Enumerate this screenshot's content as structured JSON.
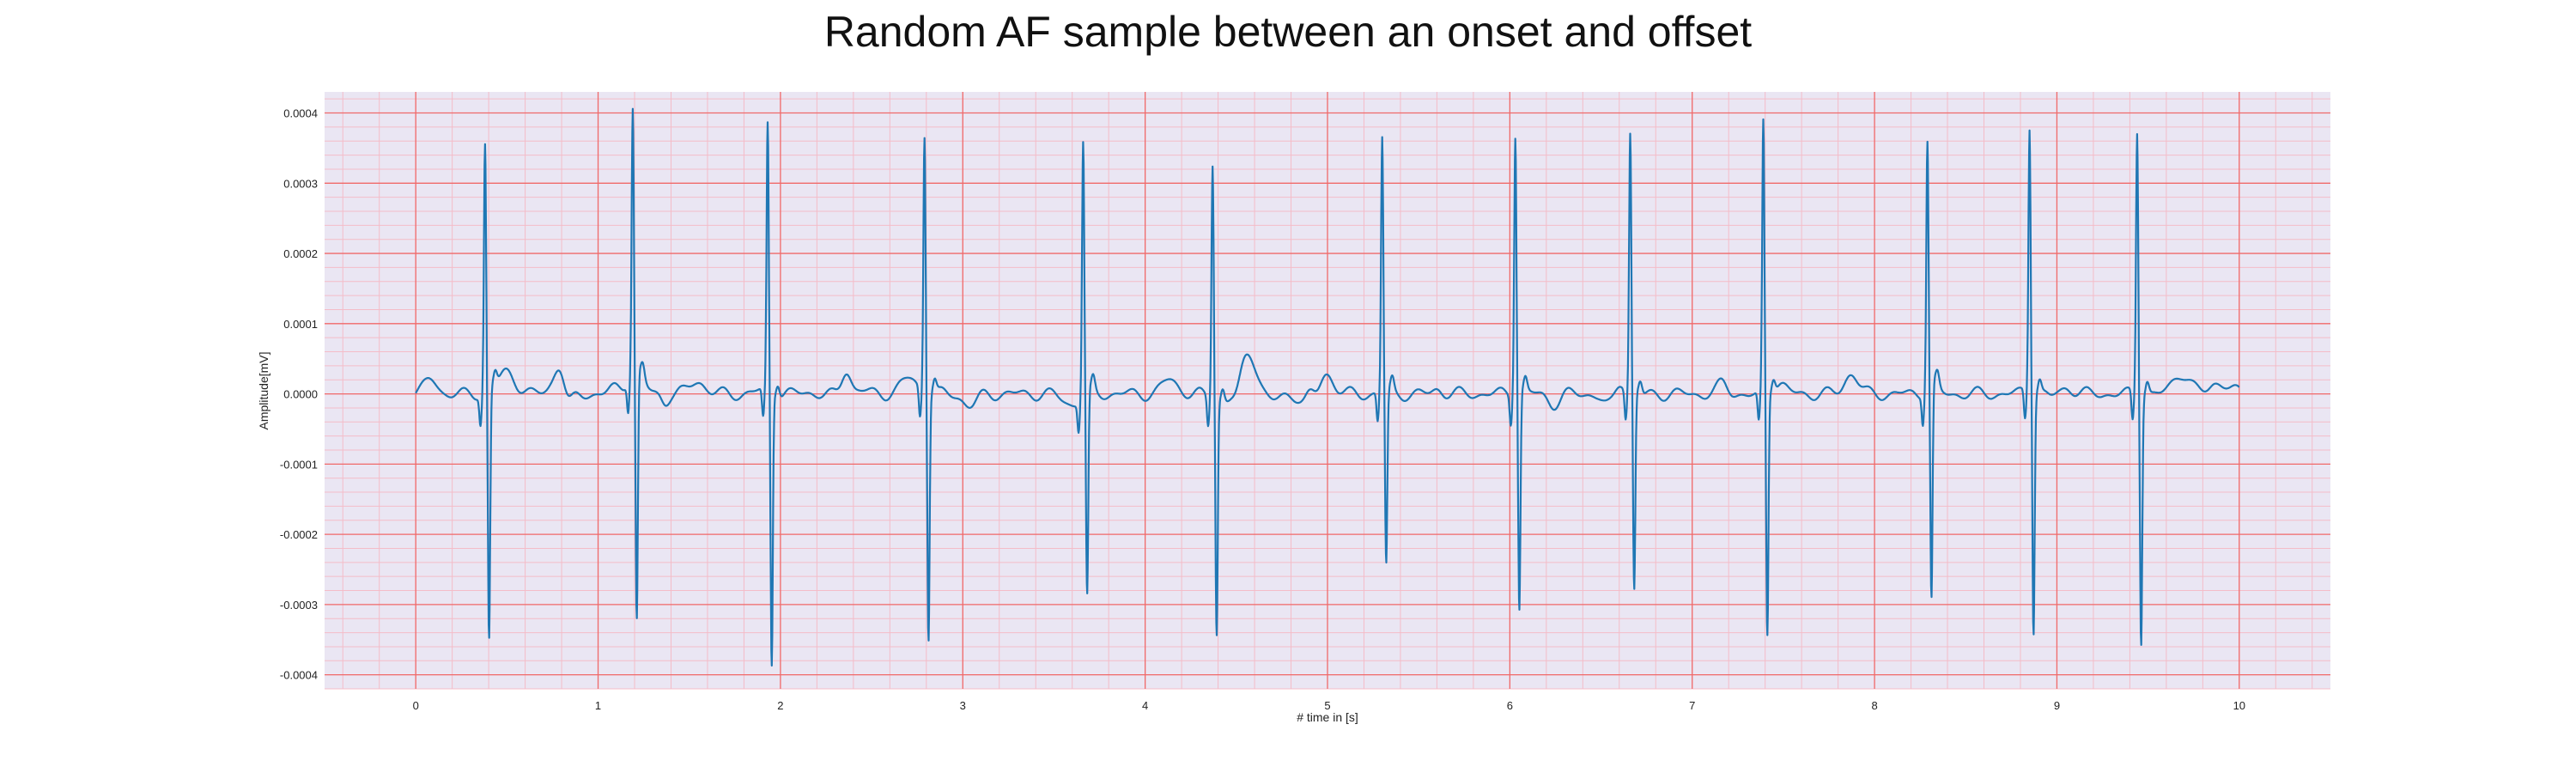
{
  "chart_data": {
    "type": "line",
    "title": "Random AF sample between an onset and offset",
    "xlabel": "# time in [s]",
    "ylabel": "Amplitude[mV]",
    "xlim": [
      -0.5,
      10.5
    ],
    "ylim": [
      -0.00042,
      0.00043
    ],
    "x_ticks": [
      0,
      1,
      2,
      3,
      4,
      5,
      6,
      7,
      8,
      9,
      10
    ],
    "x_tick_labels": [
      "0",
      "1",
      "2",
      "3",
      "4",
      "5",
      "6",
      "7",
      "8",
      "9",
      "10"
    ],
    "y_ticks": [
      -0.0004,
      -0.0003,
      -0.0002,
      -0.0001,
      0.0,
      0.0001,
      0.0002,
      0.0003,
      0.0004
    ],
    "y_tick_labels": [
      "-0.0004",
      "-0.0003",
      "-0.0002",
      "-0.0001",
      "0.0000",
      "0.0001",
      "0.0002",
      "0.0003",
      "0.0004"
    ],
    "grid": true,
    "grid_major_color": "#f06a6a",
    "grid_minor_color": "#f4bcc8",
    "background_color": "#eae6f3",
    "line_color": "#1f77b4",
    "series": [
      {
        "name": "",
        "x_start": 0,
        "x_end": 10,
        "r_peaks": [
          {
            "t": 0.38,
            "peak": 0.000355,
            "trough": -0.000355
          },
          {
            "t": 1.19,
            "peak": 0.000378,
            "trough": -0.000357
          },
          {
            "t": 1.93,
            "peak": 0.000382,
            "trough": -0.000386
          },
          {
            "t": 2.79,
            "peak": 0.000368,
            "trough": -0.000346
          },
          {
            "t": 3.66,
            "peak": 0.000365,
            "trough": -0.00029
          },
          {
            "t": 4.37,
            "peak": 0.000338,
            "trough": -0.00033
          },
          {
            "t": 5.3,
            "peak": 0.000365,
            "trough": -0.000245
          },
          {
            "t": 6.03,
            "peak": 0.00037,
            "trough": -0.000308
          },
          {
            "t": 6.66,
            "peak": 0.00037,
            "trough": -0.00028
          },
          {
            "t": 7.39,
            "peak": 0.00039,
            "trough": -0.000342
          },
          {
            "t": 8.29,
            "peak": 0.000352,
            "trough": -0.00031
          },
          {
            "t": 8.85,
            "peak": 0.000378,
            "trough": -0.000338
          },
          {
            "t": 9.44,
            "peak": 0.000376,
            "trough": -0.00035
          }
        ],
        "baseline_noise_amplitude": 4e-05
      }
    ]
  }
}
